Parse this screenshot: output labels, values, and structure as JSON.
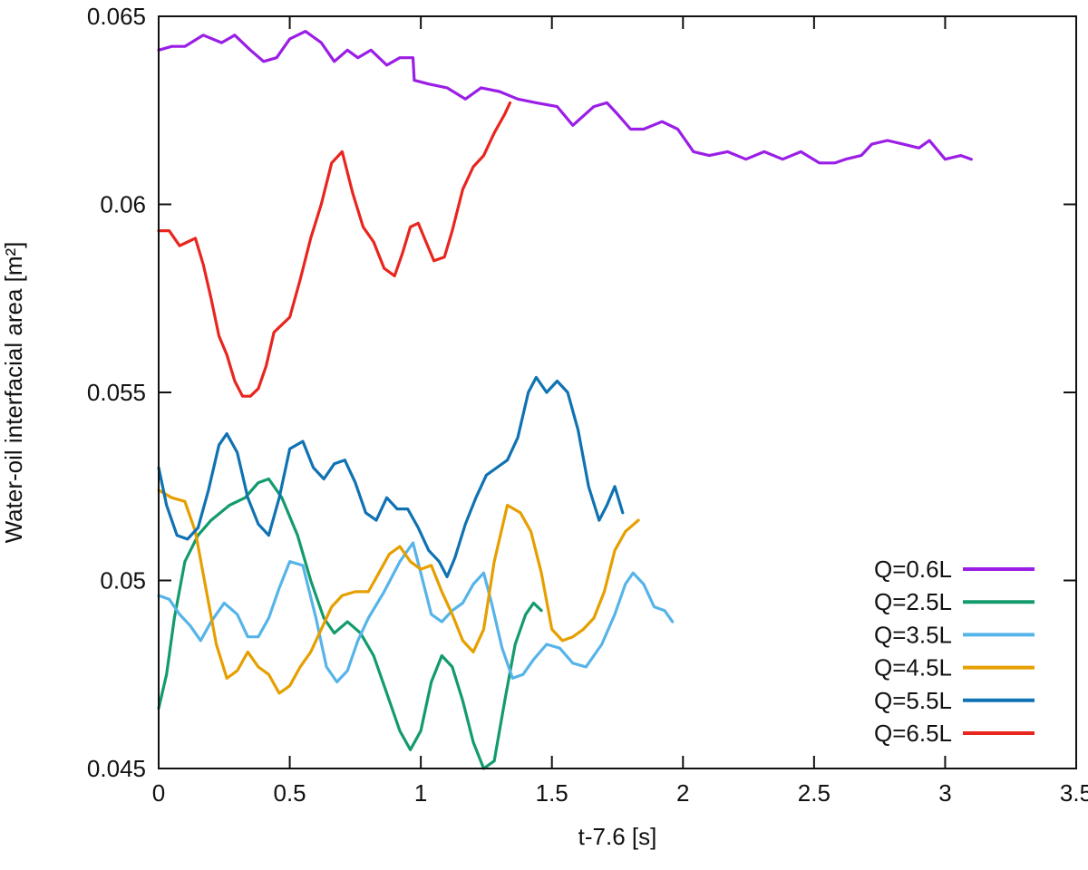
{
  "chart_data": {
    "type": "line",
    "title": "",
    "xlabel": "t-7.6 [s]",
    "ylabel": "Water-oil interfacial area [m²]",
    "xlim": [
      0,
      3.5
    ],
    "ylim": [
      0.045,
      0.065
    ],
    "xticks": [
      0,
      0.5,
      1,
      1.5,
      2,
      2.5,
      3,
      3.5
    ],
    "xtick_labels": [
      "0",
      "0.5",
      "1",
      "1.5",
      "2",
      "2.5",
      "3",
      "3.5"
    ],
    "yticks": [
      0.045,
      0.05,
      0.055,
      0.06,
      0.065
    ],
    "ytick_labels": [
      "0.045",
      "0.05",
      "0.055",
      "0.06",
      "0.065"
    ],
    "grid": false,
    "legend_position": "bottom-right",
    "series": [
      {
        "name": "Q=0.6L",
        "color": "#9a1ee6",
        "x": [
          0,
          0.05,
          0.1,
          0.17,
          0.24,
          0.29,
          0.35,
          0.4,
          0.45,
          0.5,
          0.56,
          0.62,
          0.67,
          0.72,
          0.76,
          0.81,
          0.87,
          0.92,
          0.97,
          0.975,
          1.03,
          1.1,
          1.17,
          1.23,
          1.3,
          1.37,
          1.44,
          1.52,
          1.58,
          1.66,
          1.71,
          1.75,
          1.8,
          1.85,
          1.92,
          1.98,
          2.04,
          2.1,
          2.17,
          2.24,
          2.31,
          2.38,
          2.45,
          2.52,
          2.58,
          2.62,
          2.68,
          2.72,
          2.78,
          2.84,
          2.9,
          2.94,
          3.0,
          3.06,
          3.1
        ],
        "y": [
          0.0641,
          0.0642,
          0.0642,
          0.0645,
          0.0643,
          0.0645,
          0.0641,
          0.0638,
          0.0639,
          0.0644,
          0.0646,
          0.0643,
          0.0638,
          0.0641,
          0.0639,
          0.0641,
          0.0637,
          0.0639,
          0.0639,
          0.0633,
          0.0632,
          0.0631,
          0.0628,
          0.0631,
          0.063,
          0.0628,
          0.0627,
          0.0626,
          0.0621,
          0.0626,
          0.0627,
          0.0624,
          0.062,
          0.062,
          0.0622,
          0.062,
          0.0614,
          0.0613,
          0.0614,
          0.0612,
          0.0614,
          0.0612,
          0.0614,
          0.0611,
          0.0611,
          0.0612,
          0.0613,
          0.0616,
          0.0617,
          0.0616,
          0.0615,
          0.0617,
          0.0612,
          0.0613,
          0.0612
        ]
      },
      {
        "name": "Q=2.5L",
        "color": "#139b6b",
        "x": [
          0,
          0.03,
          0.06,
          0.1,
          0.15,
          0.2,
          0.27,
          0.33,
          0.38,
          0.42,
          0.47,
          0.53,
          0.58,
          0.63,
          0.67,
          0.72,
          0.77,
          0.82,
          0.87,
          0.92,
          0.96,
          1.0,
          1.04,
          1.08,
          1.12,
          1.16,
          1.2,
          1.24,
          1.28,
          1.32,
          1.36,
          1.4,
          1.43,
          1.46
        ],
        "y": [
          0.0466,
          0.0475,
          0.049,
          0.0505,
          0.0512,
          0.0516,
          0.052,
          0.0522,
          0.0526,
          0.0527,
          0.0522,
          0.0512,
          0.05,
          0.049,
          0.0486,
          0.0489,
          0.0486,
          0.048,
          0.047,
          0.046,
          0.0455,
          0.046,
          0.0473,
          0.048,
          0.0477,
          0.0468,
          0.0457,
          0.045,
          0.0452,
          0.0468,
          0.0483,
          0.0491,
          0.0494,
          0.0492
        ]
      },
      {
        "name": "Q=3.5L",
        "color": "#56b4e9",
        "x": [
          0,
          0.04,
          0.08,
          0.12,
          0.16,
          0.2,
          0.25,
          0.3,
          0.34,
          0.38,
          0.42,
          0.46,
          0.5,
          0.55,
          0.6,
          0.64,
          0.68,
          0.72,
          0.76,
          0.8,
          0.86,
          0.92,
          0.97,
          1.0,
          1.04,
          1.08,
          1.12,
          1.16,
          1.2,
          1.24,
          1.27,
          1.31,
          1.35,
          1.39,
          1.43,
          1.48,
          1.53,
          1.58,
          1.63,
          1.69,
          1.74,
          1.78,
          1.81,
          1.85,
          1.89,
          1.93,
          1.96
        ],
        "y": [
          0.0496,
          0.0495,
          0.0491,
          0.0488,
          0.0484,
          0.0489,
          0.0494,
          0.0491,
          0.0485,
          0.0485,
          0.049,
          0.0498,
          0.0505,
          0.0504,
          0.049,
          0.0477,
          0.0473,
          0.0476,
          0.0484,
          0.049,
          0.0497,
          0.0505,
          0.051,
          0.0502,
          0.0491,
          0.0489,
          0.0492,
          0.0494,
          0.0499,
          0.0502,
          0.0494,
          0.0482,
          0.0474,
          0.0475,
          0.0479,
          0.0483,
          0.0482,
          0.0478,
          0.0477,
          0.0483,
          0.0491,
          0.0499,
          0.0502,
          0.0499,
          0.0493,
          0.0492,
          0.0489
        ]
      },
      {
        "name": "Q=4.5L",
        "color": "#e69f00",
        "x": [
          0,
          0.05,
          0.1,
          0.14,
          0.18,
          0.22,
          0.26,
          0.3,
          0.34,
          0.38,
          0.42,
          0.46,
          0.5,
          0.54,
          0.58,
          0.62,
          0.66,
          0.7,
          0.75,
          0.8,
          0.84,
          0.88,
          0.92,
          0.96,
          1.0,
          1.04,
          1.08,
          1.12,
          1.16,
          1.2,
          1.24,
          1.28,
          1.33,
          1.38,
          1.42,
          1.46,
          1.5,
          1.54,
          1.58,
          1.62,
          1.66,
          1.7,
          1.74,
          1.78,
          1.83
        ],
        "y": [
          0.0524,
          0.0522,
          0.0521,
          0.0513,
          0.0498,
          0.0483,
          0.0474,
          0.0476,
          0.0481,
          0.0477,
          0.0475,
          0.047,
          0.0472,
          0.0477,
          0.0481,
          0.0487,
          0.0493,
          0.0496,
          0.0497,
          0.0497,
          0.0502,
          0.0507,
          0.0509,
          0.0505,
          0.0503,
          0.0504,
          0.0497,
          0.0491,
          0.0484,
          0.0481,
          0.0487,
          0.0505,
          0.052,
          0.0518,
          0.0513,
          0.0502,
          0.0487,
          0.0484,
          0.0485,
          0.0487,
          0.049,
          0.0497,
          0.0508,
          0.0513,
          0.0516
        ]
      },
      {
        "name": "Q=5.5L",
        "color": "#0f72b2",
        "x": [
          0,
          0.03,
          0.07,
          0.11,
          0.15,
          0.19,
          0.23,
          0.26,
          0.3,
          0.34,
          0.38,
          0.42,
          0.46,
          0.5,
          0.55,
          0.59,
          0.63,
          0.67,
          0.71,
          0.75,
          0.79,
          0.83,
          0.87,
          0.91,
          0.95,
          0.99,
          1.03,
          1.07,
          1.1,
          1.13,
          1.17,
          1.21,
          1.25,
          1.29,
          1.33,
          1.37,
          1.41,
          1.44,
          1.48,
          1.52,
          1.56,
          1.6,
          1.64,
          1.68,
          1.71,
          1.74,
          1.77
        ],
        "y": [
          0.053,
          0.052,
          0.0512,
          0.0511,
          0.0514,
          0.0524,
          0.0536,
          0.0539,
          0.0534,
          0.0522,
          0.0515,
          0.0512,
          0.0522,
          0.0535,
          0.0537,
          0.053,
          0.0527,
          0.0531,
          0.0532,
          0.0526,
          0.0518,
          0.0516,
          0.0522,
          0.0519,
          0.0519,
          0.0514,
          0.0508,
          0.0505,
          0.0501,
          0.0506,
          0.0515,
          0.0522,
          0.0528,
          0.053,
          0.0532,
          0.0538,
          0.055,
          0.0554,
          0.055,
          0.0553,
          0.055,
          0.054,
          0.0525,
          0.0516,
          0.052,
          0.0525,
          0.0518
        ]
      },
      {
        "name": "Q=6.5L",
        "color": "#e8261f",
        "x": [
          0,
          0.04,
          0.08,
          0.11,
          0.14,
          0.17,
          0.2,
          0.23,
          0.26,
          0.29,
          0.32,
          0.35,
          0.38,
          0.41,
          0.44,
          0.47,
          0.5,
          0.54,
          0.58,
          0.62,
          0.66,
          0.7,
          0.74,
          0.78,
          0.82,
          0.86,
          0.9,
          0.93,
          0.96,
          0.99,
          1.02,
          1.05,
          1.09,
          1.12,
          1.16,
          1.2,
          1.24,
          1.28,
          1.32,
          1.34
        ],
        "y": [
          0.0593,
          0.0593,
          0.0589,
          0.059,
          0.0591,
          0.0584,
          0.0575,
          0.0565,
          0.056,
          0.0553,
          0.0549,
          0.0549,
          0.0551,
          0.0557,
          0.0566,
          0.0568,
          0.057,
          0.058,
          0.0591,
          0.06,
          0.0611,
          0.0614,
          0.0603,
          0.0594,
          0.059,
          0.0583,
          0.0581,
          0.0587,
          0.0594,
          0.0595,
          0.059,
          0.0585,
          0.0586,
          0.0593,
          0.0604,
          0.061,
          0.0613,
          0.0619,
          0.0624,
          0.0627
        ]
      }
    ]
  }
}
